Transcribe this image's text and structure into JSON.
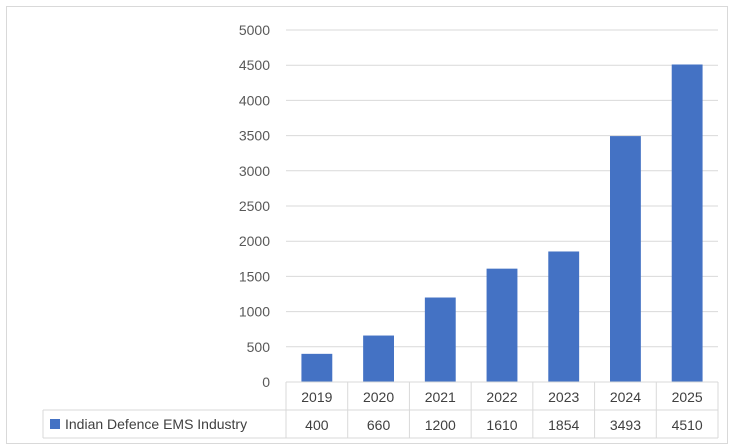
{
  "chart_data": {
    "type": "bar",
    "title": "",
    "xlabel": "",
    "ylabel": "",
    "categories": [
      "2019",
      "2020",
      "2021",
      "2022",
      "2023",
      "2024",
      "2025"
    ],
    "series": [
      {
        "name": "Indian Defence EMS Industry",
        "values": [
          400,
          660,
          1200,
          1610,
          1854,
          3493,
          4510
        ],
        "value_labels": [
          "400",
          "660",
          "1200",
          "1610",
          "1854",
          "3493",
          "4510"
        ],
        "color": "#4472c4"
      }
    ],
    "ylim": [
      0,
      5000
    ],
    "yticks": [
      "0",
      "500",
      "1000",
      "1500",
      "2000",
      "2500",
      "3000",
      "3500",
      "4000",
      "4500",
      "5000"
    ],
    "grid": true,
    "legend": "data-table",
    "colors": {
      "bar": "#4472c4",
      "grid": "#d9d9d9",
      "text": "#595959"
    }
  }
}
